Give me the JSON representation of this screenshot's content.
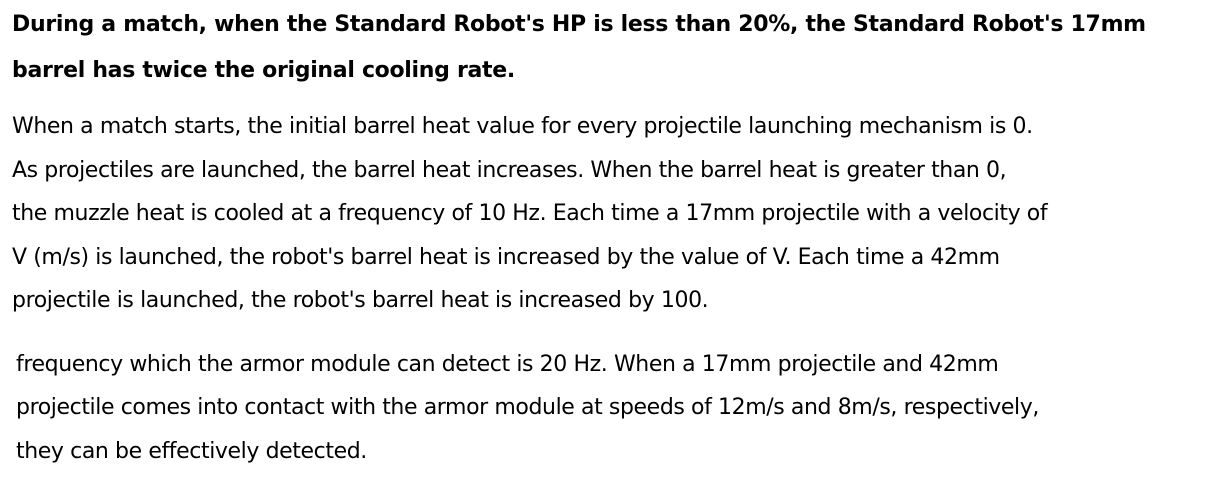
{
  "heading": {
    "lines": [
      "During a match, when the Standard Robot's HP is less than 20%, the Standard Robot's 17mm",
      "barrel has twice the original cooling rate."
    ]
  },
  "paragraph1": {
    "lines": [
      "When a match starts, the initial barrel heat value for every projectile launching mechanism is 0.",
      "As projectiles are launched, the barrel heat increases. When the barrel heat is greater than 0,",
      "the muzzle heat is cooled at a frequency of 10 Hz. Each time a 17mm projectile with a velocity of",
      "V (m/s) is launched, the robot's barrel heat is increased by the value of V. Each time a 42mm",
      "projectile is launched, the robot's barrel heat is increased by 100."
    ]
  },
  "paragraph2": {
    "lines": [
      "frequency which the armor module can detect is 20 Hz. When a 17mm projectile and 42mm",
      "projectile comes into contact with the armor module at speeds of 12m/s and 8m/s, respectively,",
      "they can be effectively detected."
    ]
  }
}
